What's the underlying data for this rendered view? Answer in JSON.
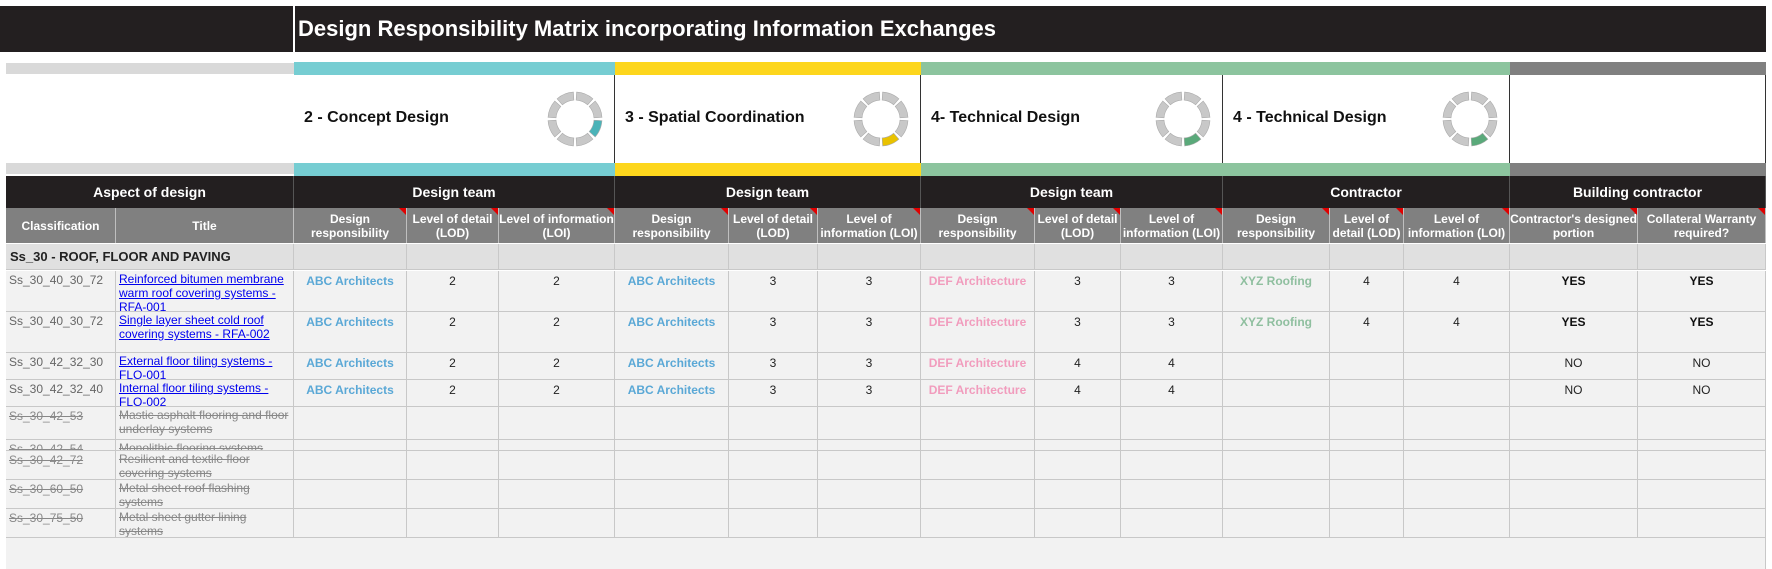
{
  "page_title": "Design Responsibility Matrix incorporating Information Exchanges",
  "stages": [
    {
      "label": "2 - Concept Design",
      "color": "#76cdd2",
      "accent": "#4bb3b8"
    },
    {
      "label": "3 - Spatial Coordination",
      "color": "#fdd61d",
      "accent": "#e9c200"
    },
    {
      "label": "4- Technical Design",
      "color": "#8cc49e",
      "accent": "#5aa97a"
    },
    {
      "label": "4 - Technical Design",
      "color": "#8cc49e",
      "accent": "#5aa97a"
    },
    {
      "label": "",
      "color": "#808080",
      "accent": ""
    }
  ],
  "groups": {
    "aspect": "Aspect of design",
    "g1": "Design team",
    "g2": "Design team",
    "g3": "Design team",
    "g4": "Contractor",
    "g5": "Building contractor"
  },
  "columns": {
    "classification": "Classification",
    "title": "Title",
    "design_resp": "Design responsibility",
    "lod": "Level of detail (LOD)",
    "loi": "Level of information (LOI)",
    "lod_short": "Level of detail (LOD)",
    "loi_short": "Level of information (LOI)",
    "contractor_portion": "Contractor's designed portion",
    "collateral": "Collateral Warranty required?"
  },
  "section": "Ss_30 - ROOF, FLOOR AND PAVING",
  "rows": [
    {
      "cls": "Ss_30_40_30_72",
      "title": "Reinforced bitumen membrane warm roof covering systems - RFA-001",
      "active": true,
      "dr1": "ABC Architects",
      "lod1": "2",
      "loi1": "2",
      "dr2": "ABC Architects",
      "lod2": "3",
      "loi2": "3",
      "dr3": "DEF Architecture",
      "lod3": "3",
      "loi3": "3",
      "dr4": "XYZ Roofing",
      "lod4": "4",
      "loi4": "4",
      "cdp": "YES",
      "cw": "YES"
    },
    {
      "cls": "Ss_30_40_30_72",
      "title": "Single layer sheet cold roof covering systems - RFA-002",
      "active": true,
      "dr1": "ABC Architects",
      "lod1": "2",
      "loi1": "2",
      "dr2": "ABC Architects",
      "lod2": "3",
      "loi2": "3",
      "dr3": "DEF Architecture",
      "lod3": "3",
      "loi3": "3",
      "dr4": "XYZ Roofing",
      "lod4": "4",
      "loi4": "4",
      "cdp": "YES",
      "cw": "YES"
    },
    {
      "cls": "Ss_30_42_32_30",
      "title": "External floor tiling systems - FLO-001",
      "active": true,
      "dr1": "ABC Architects",
      "lod1": "2",
      "loi1": "2",
      "dr2": "ABC Architects",
      "lod2": "3",
      "loi2": "3",
      "dr3": "DEF Architecture",
      "lod3": "4",
      "loi3": "4",
      "dr4": "",
      "lod4": "",
      "loi4": "",
      "cdp": "NO",
      "cw": "NO"
    },
    {
      "cls": "Ss_30_42_32_40",
      "title": "Internal floor tiling systems - FLO-002",
      "active": true,
      "dr1": "ABC Architects",
      "lod1": "2",
      "loi1": "2",
      "dr2": "ABC Architects",
      "lod2": "3",
      "loi2": "3",
      "dr3": "DEF Architecture",
      "lod3": "4",
      "loi3": "4",
      "dr4": "",
      "lod4": "",
      "loi4": "",
      "cdp": "NO",
      "cw": "NO"
    },
    {
      "cls": "Ss_30_42_53",
      "title": "Mastic asphalt flooring and floor underlay systems",
      "active": false
    },
    {
      "cls": "Ss_30_42_54",
      "title": "Monolithic flooring systems",
      "active": false
    },
    {
      "cls": "Ss_30_42_72",
      "title": "Resilient and textile floor covering systems",
      "active": false
    },
    {
      "cls": "Ss_30_60_50",
      "title": "Metal sheet roof flashing systems",
      "active": false
    },
    {
      "cls": "Ss_30_75_50",
      "title": "Metal sheet gutter lining systems",
      "active": false
    }
  ]
}
